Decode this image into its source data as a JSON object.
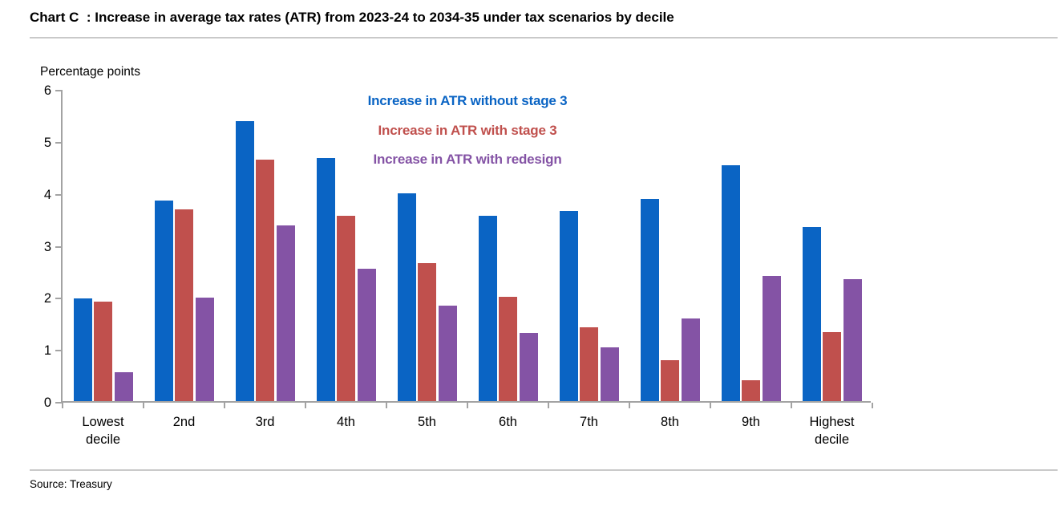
{
  "chart_title": "Chart C  : Increase in average tax rates (ATR) from 2023-24 to 2034-35 under tax scenarios by decile",
  "source": "Source: Treasury",
  "chart_data": {
    "type": "bar",
    "title": "Chart C : Increase in average tax rates (ATR) from 2023-24 to 2034-35 under tax scenarios by decile",
    "unit_label": "Percentage points",
    "categories": [
      "Lowest\ndecile",
      "2nd",
      "3rd",
      "4th",
      "5th",
      "6th",
      "7th",
      "8th",
      "9th",
      "Highest\ndecile"
    ],
    "series": [
      {
        "name": "Increase in ATR without stage 3",
        "color": "#0A64C4",
        "values": [
          1.97,
          3.86,
          5.38,
          4.67,
          4.0,
          3.57,
          3.65,
          3.88,
          4.53,
          3.35
        ]
      },
      {
        "name": "Increase in ATR with stage 3",
        "color": "#C0504D",
        "values": [
          1.91,
          3.69,
          4.64,
          3.57,
          2.66,
          2.01,
          1.42,
          0.78,
          0.4,
          1.33
        ]
      },
      {
        "name": "Increase in ATR with redesign",
        "color": "#8453A5",
        "values": [
          0.55,
          1.99,
          3.38,
          2.55,
          1.84,
          1.31,
          1.03,
          1.59,
          2.4,
          2.35
        ]
      }
    ],
    "ylim": [
      0,
      6
    ],
    "ytick_step": 1,
    "ylabel": "Percentage points",
    "xlabel": "",
    "grid": false,
    "legend_position": "top-center-inside"
  },
  "colors": {
    "axis": "#A3A3A3",
    "divider": "#C9C9C9",
    "text": "#000000"
  }
}
